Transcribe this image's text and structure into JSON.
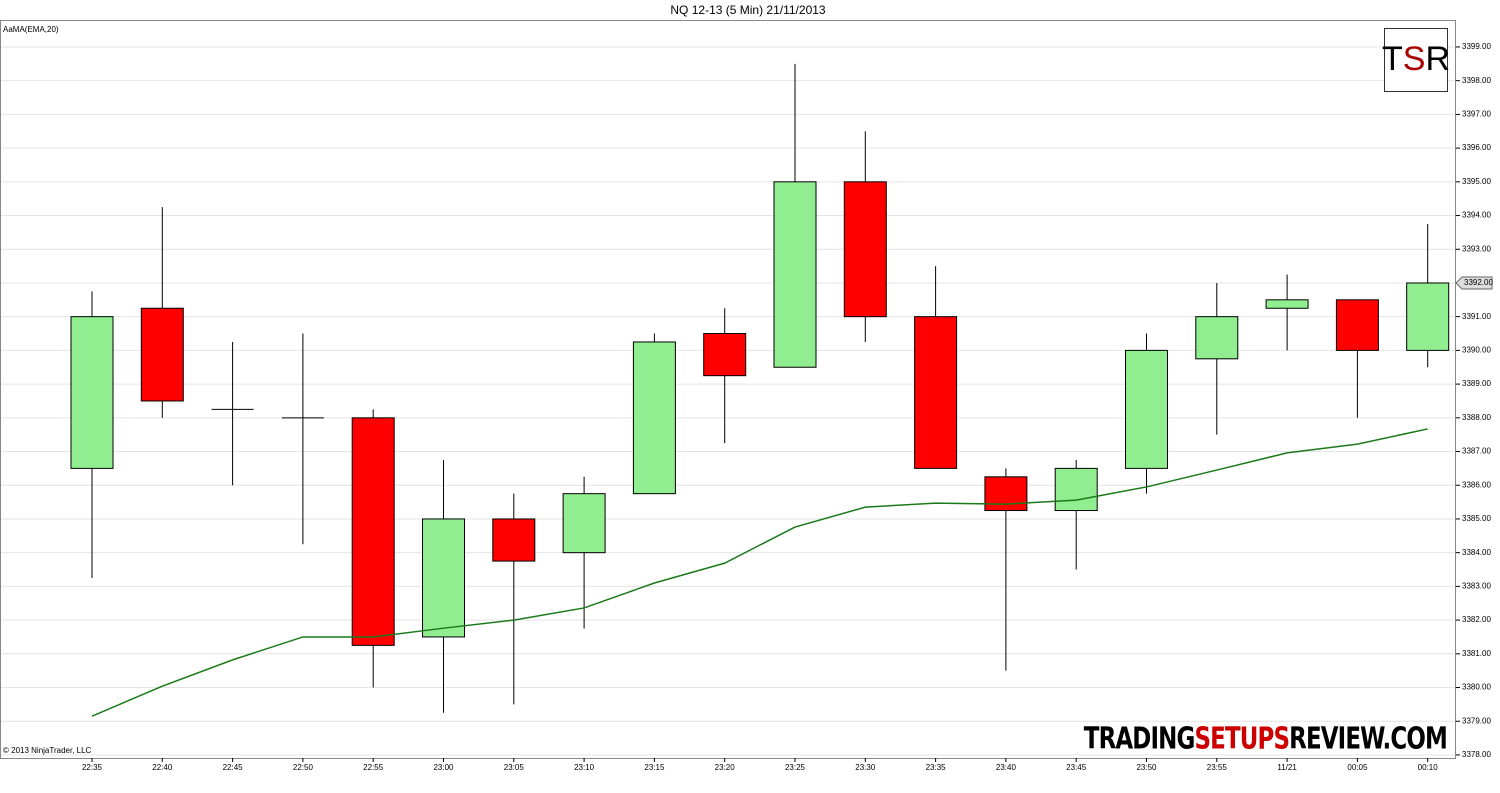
{
  "chart_data": {
    "type": "candlestick",
    "title": "NQ 12-13 (5 Min)  21/11/2013",
    "copyright": "© 2013 NinjaTrader, LLC",
    "logo": [
      "T",
      "S",
      "R"
    ],
    "watermark": [
      "TRADING",
      "SETUPS",
      "REVIEW.COM"
    ],
    "categories": [
      "22:35",
      "22:40",
      "22:45",
      "22:50",
      "22:55",
      "23:00",
      "23:05",
      "23:10",
      "23:15",
      "23:20",
      "23:25",
      "23:30",
      "23:35",
      "23:40",
      "23:45",
      "23:50",
      "23:55",
      "11/21",
      "00:05",
      "00:10"
    ],
    "open": [
      3386.5,
      3391.25,
      3388.25,
      3388.0,
      3388.0,
      3381.5,
      3385.0,
      3384.0,
      3385.75,
      3390.5,
      3389.5,
      3395.0,
      3391.0,
      3386.25,
      3385.25,
      3386.5,
      3389.75,
      3391.25,
      3391.5,
      3390.0
    ],
    "high": [
      3391.75,
      3394.25,
      3390.25,
      3390.5,
      3388.25,
      3386.75,
      3385.75,
      3386.25,
      3390.5,
      3391.25,
      3398.5,
      3396.5,
      3392.5,
      3386.5,
      3386.75,
      3390.5,
      3392.0,
      3392.25,
      3391.5,
      3393.75
    ],
    "low": [
      3383.25,
      3388.0,
      3386.0,
      3384.25,
      3380.0,
      3379.25,
      3379.5,
      3381.75,
      3385.75,
      3387.25,
      3389.5,
      3390.25,
      3386.5,
      3380.5,
      3383.5,
      3385.75,
      3387.5,
      3390.0,
      3388.0,
      3389.5
    ],
    "close": [
      3391.0,
      3388.5,
      3388.25,
      3388.0,
      3381.25,
      3385.0,
      3383.75,
      3385.75,
      3390.25,
      3389.25,
      3395.0,
      3391.0,
      3386.5,
      3385.25,
      3386.5,
      3390.0,
      3391.0,
      3391.5,
      3390.0,
      3392.0
    ],
    "up_color": "#90ee90",
    "down_color": "#ff0000",
    "ema": {
      "name": "AaMA(EMA,20)",
      "color": "#1a7a1a",
      "values": [
        3379.15,
        3380.04,
        3380.82,
        3381.5,
        3381.5,
        3381.76,
        3382.0,
        3382.36,
        3383.1,
        3383.69,
        3384.76,
        3385.35,
        3385.47,
        3385.44,
        3385.56,
        3385.95,
        3386.45,
        3386.96,
        3387.22,
        3387.67
      ]
    },
    "last_price": {
      "value": 3392,
      "label": "3392.00"
    },
    "ylim": [
      3377.85,
      3399.8
    ],
    "yticks": [
      {
        "value": 3378,
        "label": "3378.00"
      },
      {
        "value": 3379,
        "label": "3379.00"
      },
      {
        "value": 3380,
        "label": "3380.00"
      },
      {
        "value": 3381,
        "label": "3381.00"
      },
      {
        "value": 3382,
        "label": "3382.00"
      },
      {
        "value": 3383,
        "label": "3383.00"
      },
      {
        "value": 3384,
        "label": "3384.00"
      },
      {
        "value": 3385,
        "label": "3385.00"
      },
      {
        "value": 3386,
        "label": "3386.00"
      },
      {
        "value": 3387,
        "label": "3387.00"
      },
      {
        "value": 3388,
        "label": "3388.00"
      },
      {
        "value": 3389,
        "label": "3389.00"
      },
      {
        "value": 3390,
        "label": "3390.00"
      },
      {
        "value": 3391,
        "label": "3391.00"
      },
      {
        "value": 3392,
        "label": "3392.00"
      },
      {
        "value": 3393,
        "label": "3393.00"
      },
      {
        "value": 3394,
        "label": "3394.00"
      },
      {
        "value": 3395,
        "label": "3395.00"
      },
      {
        "value": 3396,
        "label": "3396.00"
      },
      {
        "value": 3397,
        "label": "3397.00"
      },
      {
        "value": 3398,
        "label": "3398.00"
      },
      {
        "value": 3399,
        "label": "3399.00"
      }
    ],
    "grid": true
  }
}
